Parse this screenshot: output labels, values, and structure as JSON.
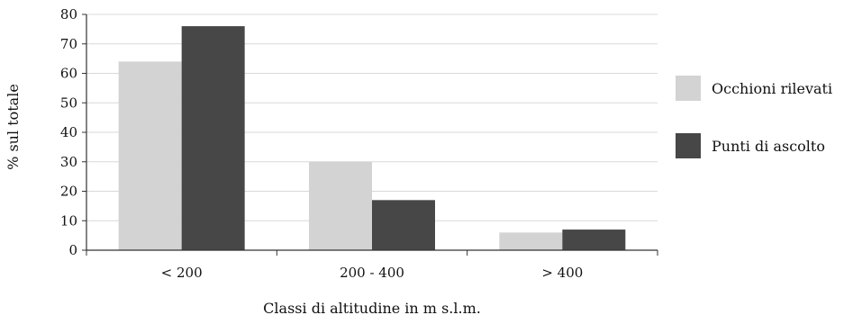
{
  "chart_data": {
    "type": "bar",
    "categories": [
      "< 200",
      "200 - 400",
      "> 400"
    ],
    "series": [
      {
        "name": "Occhioni rilevati",
        "values": [
          64,
          30,
          6
        ],
        "color": "#d3d3d3"
      },
      {
        "name": "Punti di ascolto",
        "values": [
          76,
          17,
          7
        ],
        "color": "#474747"
      }
    ],
    "title": "",
    "xlabel": "Classi di altitudine in m s.l.m.",
    "ylabel": "% sul totale",
    "ylim": [
      0,
      80
    ],
    "yticks": [
      0,
      10,
      20,
      30,
      40,
      50,
      60,
      70,
      80
    ],
    "grid": true,
    "legend_position": "right"
  }
}
